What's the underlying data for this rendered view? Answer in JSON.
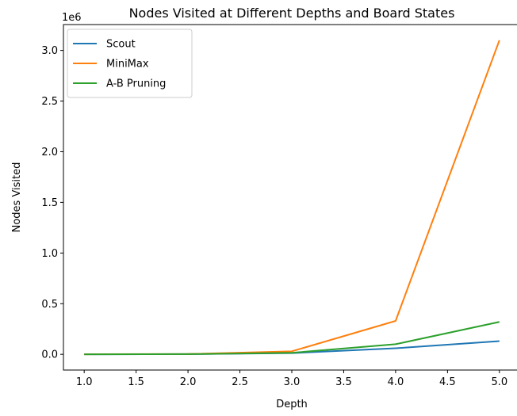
{
  "chart_data": {
    "type": "line",
    "title": "Nodes Visited at Different Depths and Board States",
    "xlabel": "Depth",
    "ylabel": "Nodes Visited",
    "y_offset_label": "1e6",
    "xlim": [
      0.8,
      5.2
    ],
    "ylim": [
      -0.155,
      3.255
    ],
    "x_ticks": [
      1.0,
      1.5,
      2.0,
      2.5,
      3.0,
      3.5,
      4.0,
      4.5,
      5.0
    ],
    "x_tick_labels": [
      "1.0",
      "1.5",
      "2.0",
      "2.5",
      "3.0",
      "3.5",
      "4.0",
      "4.5",
      "5.0"
    ],
    "y_ticks": [
      0.0,
      0.5,
      1.0,
      1.5,
      2.0,
      2.5,
      3.0
    ],
    "y_tick_labels": [
      "0.0",
      "0.5",
      "1.0",
      "1.5",
      "2.0",
      "2.5",
      "3.0"
    ],
    "x": [
      1,
      2,
      3,
      4,
      5
    ],
    "grid": false,
    "legend_position": "top-left",
    "series": [
      {
        "name": "Scout",
        "color": "#1f77b4",
        "values": [
          0.0005,
          0.002,
          0.012,
          0.06,
          0.13
        ]
      },
      {
        "name": "MiniMax",
        "color": "#ff7f0e",
        "values": [
          0.0006,
          0.003,
          0.03,
          0.33,
          3.1
        ]
      },
      {
        "name": "A-B Pruning",
        "color": "#2ca02c",
        "values": [
          0.0005,
          0.002,
          0.015,
          0.1,
          0.32
        ]
      }
    ]
  }
}
